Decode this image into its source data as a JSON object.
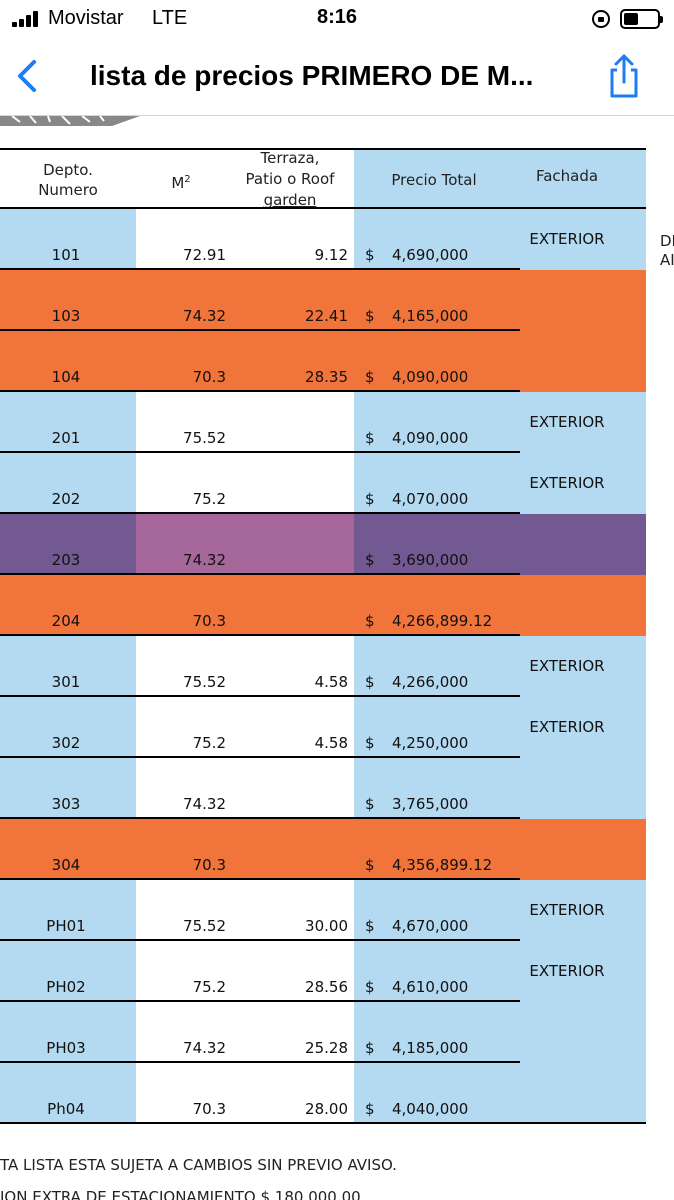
{
  "status_bar": {
    "carrier": "Movistar",
    "network": "LTE",
    "time": "8:16"
  },
  "nav": {
    "title": "lista de precios PRIMERO DE M...",
    "back_icon": "chevron-left-icon",
    "share_icon": "share-icon"
  },
  "colors": {
    "blue": "#b4daf2",
    "orange": "#f1743b",
    "purple": "#735992",
    "pink": "#a6689a",
    "ios_blue": "#1e7cf6"
  },
  "table": {
    "headers": {
      "depto": "Depto.\nNumero",
      "m2": "M",
      "m2_sup": "2",
      "terraza": "Terraza,\nPatio o Roof\ngarden",
      "precio": "Precio Total",
      "fachada": "Fachada"
    },
    "rows": [
      {
        "depto": "101",
        "m2": "72.91",
        "terraza": "9.12",
        "currency": "$",
        "precio": "4,690,000",
        "fachada": "EXTERIOR",
        "style": "blue"
      },
      {
        "depto": "103",
        "m2": "74.32",
        "terraza": "22.41",
        "currency": "$",
        "precio": "4,165,000",
        "fachada": "",
        "style": "orange"
      },
      {
        "depto": "104",
        "m2": "70.3",
        "terraza": "28.35",
        "currency": "$",
        "precio": "4,090,000",
        "fachada": "",
        "style": "orange"
      },
      {
        "depto": "201",
        "m2": "75.52",
        "terraza": "",
        "currency": "$",
        "precio": "4,090,000",
        "fachada": "EXTERIOR",
        "style": "blue"
      },
      {
        "depto": "202",
        "m2": "75.2",
        "terraza": "",
        "currency": "$",
        "precio": "4,070,000",
        "fachada": "EXTERIOR",
        "style": "blue"
      },
      {
        "depto": "203",
        "m2": "74.32",
        "terraza": "",
        "currency": "$",
        "precio": "3,690,000",
        "fachada": "",
        "style": "purple"
      },
      {
        "depto": "204",
        "m2": "70.3",
        "terraza": "",
        "currency": "$",
        "precio": "4,266,899.12",
        "fachada": "",
        "style": "orange"
      },
      {
        "depto": "301",
        "m2": "75.52",
        "terraza": "4.58",
        "currency": "$",
        "precio": "4,266,000",
        "fachada": "EXTERIOR",
        "style": "blue"
      },
      {
        "depto": "302",
        "m2": "75.2",
        "terraza": "4.58",
        "currency": "$",
        "precio": "4,250,000",
        "fachada": "EXTERIOR",
        "style": "blue"
      },
      {
        "depto": "303",
        "m2": "74.32",
        "terraza": "",
        "currency": "$",
        "precio": "3,765,000",
        "fachada": "",
        "style": "blue"
      },
      {
        "depto": "304",
        "m2": "70.3",
        "terraza": "",
        "currency": "$",
        "precio": "4,356,899.12",
        "fachada": "",
        "style": "orange"
      },
      {
        "depto": "PH01",
        "m2": "75.52",
        "terraza": "30.00",
        "currency": "$",
        "precio": "4,670,000",
        "fachada": "EXTERIOR",
        "style": "blue"
      },
      {
        "depto": "PH02",
        "m2": "75.2",
        "terraza": "28.56",
        "currency": "$",
        "precio": "4,610,000",
        "fachada": "EXTERIOR",
        "style": "blue"
      },
      {
        "depto": "PH03",
        "m2": "74.32",
        "terraza": "25.28",
        "currency": "$",
        "precio": "4,185,000",
        "fachada": "",
        "style": "blue"
      },
      {
        "depto": "Ph04",
        "m2": "70.3",
        "terraza": "28.00",
        "currency": "$",
        "precio": "4,040,000",
        "fachada": "",
        "style": "blue"
      }
    ]
  },
  "side_text": {
    "line1": "DI",
    "line2": "AI"
  },
  "footer": {
    "note1": "TA LISTA ESTA SUJETA A CAMBIOS SIN PREVIO AVISO.",
    "note2": "ION EXTRA DE ESTACIONAMIENTO $ 180,000.00"
  }
}
